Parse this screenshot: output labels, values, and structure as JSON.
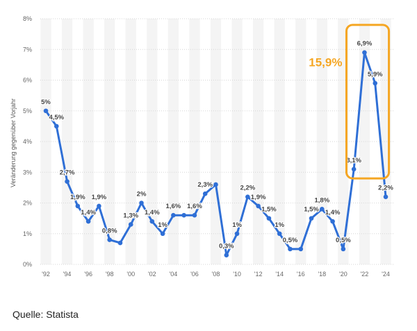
{
  "chart_data": {
    "type": "line",
    "title": "",
    "ylabel": "Veränderung gegenüber Vorjahr",
    "xlabel": "",
    "ylim": [
      0,
      8
    ],
    "yticks": [
      "0%",
      "1%",
      "2%",
      "3%",
      "4%",
      "5%",
      "6%",
      "7%",
      "8%"
    ],
    "xlim": [
      1992,
      2024
    ],
    "xticks": [
      "'92",
      "'94",
      "'96",
      "'98",
      "'00",
      "'02",
      "'04",
      "'06",
      "'08",
      "'10",
      "'12",
      "'14",
      "'16",
      "'18",
      "'20",
      "'22",
      "'24"
    ],
    "grid": "alternating vertical bands",
    "line_color": "#2F6FD6",
    "series": [
      {
        "points": [
          {
            "x": 1992,
            "y": 5.0,
            "label": "5%"
          },
          {
            "x": 1993,
            "y": 4.5,
            "label": "4,5%"
          },
          {
            "x": 1994,
            "y": 2.7,
            "label": "2,7%"
          },
          {
            "x": 1995,
            "y": 1.9,
            "label": "1,9%"
          },
          {
            "x": 1996,
            "y": 1.4,
            "label": "1,4%"
          },
          {
            "x": 1997,
            "y": 1.9,
            "label": "1,9%"
          },
          {
            "x": 1998,
            "y": 0.8,
            "label": "0,8%"
          },
          {
            "x": 1999,
            "y": 0.7,
            "label": ""
          },
          {
            "x": 2000,
            "y": 1.3,
            "label": "1,3%"
          },
          {
            "x": 2001,
            "y": 2.0,
            "label": "2%"
          },
          {
            "x": 2002,
            "y": 1.4,
            "label": "1,4%"
          },
          {
            "x": 2003,
            "y": 1.0,
            "label": "1%"
          },
          {
            "x": 2004,
            "y": 1.6,
            "label": "1,6%"
          },
          {
            "x": 2005,
            "y": 1.6,
            "label": ""
          },
          {
            "x": 2006,
            "y": 1.6,
            "label": "1,6%"
          },
          {
            "x": 2007,
            "y": 2.3,
            "label": "2,3%"
          },
          {
            "x": 2008,
            "y": 2.6,
            "label": ""
          },
          {
            "x": 2009,
            "y": 0.3,
            "label": "0,3%"
          },
          {
            "x": 2010,
            "y": 1.0,
            "label": "1%"
          },
          {
            "x": 2011,
            "y": 2.2,
            "label": "2,2%"
          },
          {
            "x": 2012,
            "y": 1.9,
            "label": "1,9%"
          },
          {
            "x": 2013,
            "y": 1.5,
            "label": "1,5%"
          },
          {
            "x": 2014,
            "y": 1.0,
            "label": "1%"
          },
          {
            "x": 2015,
            "y": 0.5,
            "label": "0,5%"
          },
          {
            "x": 2016,
            "y": 0.5,
            "label": ""
          },
          {
            "x": 2017,
            "y": 1.5,
            "label": "1,5%"
          },
          {
            "x": 2018,
            "y": 1.8,
            "label": "1,8%"
          },
          {
            "x": 2019,
            "y": 1.4,
            "label": "1,4%"
          },
          {
            "x": 2020,
            "y": 0.5,
            "label": "0,5%"
          },
          {
            "x": 2021,
            "y": 3.1,
            "label": "3,1%"
          },
          {
            "x": 2022,
            "y": 6.9,
            "label": "6,9%"
          },
          {
            "x": 2023,
            "y": 5.9,
            "label": "5,9%"
          },
          {
            "x": 2024,
            "y": 2.2,
            "label": "2,2%"
          }
        ]
      }
    ],
    "annotation": {
      "text": "15,9%",
      "color": "#F5A623",
      "box_x": [
        2020.3,
        2024.3
      ],
      "box_y": [
        2.8,
        7.8
      ]
    }
  },
  "source": "Quelle: Statista"
}
